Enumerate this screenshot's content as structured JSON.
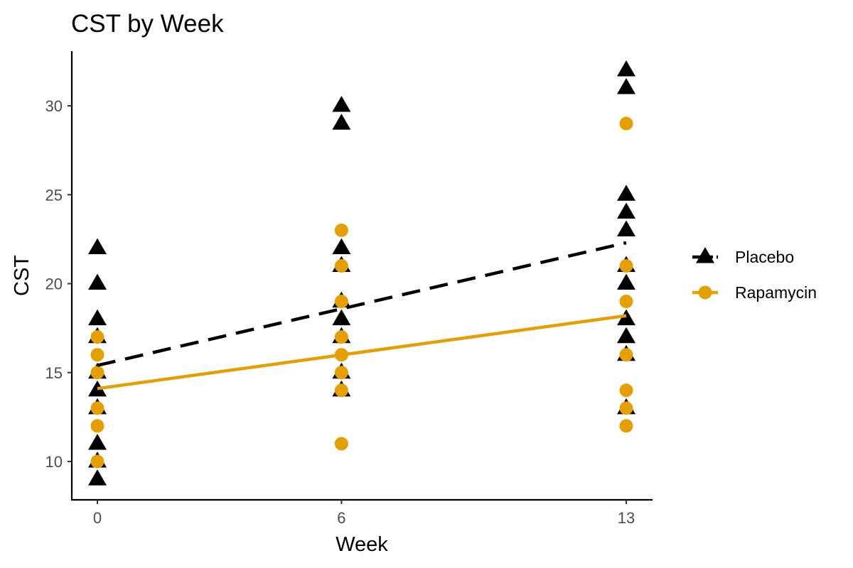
{
  "chart_data": {
    "type": "scatter",
    "title": "CST by Week",
    "xlabel": "Week",
    "ylabel": "CST",
    "x_ticks": [
      0,
      6,
      13
    ],
    "y_ticks": [
      10,
      15,
      20,
      25,
      30
    ],
    "xlim": [
      -0.6,
      13.5
    ],
    "ylim": [
      8.0,
      33.0
    ],
    "legend_position": "right",
    "series": [
      {
        "name": "Placebo",
        "color": "#000000",
        "marker": "triangle",
        "line_style": "dashed",
        "points": [
          {
            "x": 0,
            "y": 9
          },
          {
            "x": 0,
            "y": 10
          },
          {
            "x": 0,
            "y": 11
          },
          {
            "x": 0,
            "y": 13
          },
          {
            "x": 0,
            "y": 14
          },
          {
            "x": 0,
            "y": 15
          },
          {
            "x": 0,
            "y": 17
          },
          {
            "x": 0,
            "y": 18
          },
          {
            "x": 0,
            "y": 20
          },
          {
            "x": 0,
            "y": 22
          },
          {
            "x": 6,
            "y": 14
          },
          {
            "x": 6,
            "y": 15
          },
          {
            "x": 6,
            "y": 17
          },
          {
            "x": 6,
            "y": 18
          },
          {
            "x": 6,
            "y": 19
          },
          {
            "x": 6,
            "y": 21
          },
          {
            "x": 6,
            "y": 22
          },
          {
            "x": 6,
            "y": 29
          },
          {
            "x": 6,
            "y": 30
          },
          {
            "x": 13,
            "y": 13
          },
          {
            "x": 13,
            "y": 16
          },
          {
            "x": 13,
            "y": 17
          },
          {
            "x": 13,
            "y": 18
          },
          {
            "x": 13,
            "y": 20
          },
          {
            "x": 13,
            "y": 21
          },
          {
            "x": 13,
            "y": 23
          },
          {
            "x": 13,
            "y": 24
          },
          {
            "x": 13,
            "y": 25
          },
          {
            "x": 13,
            "y": 31
          },
          {
            "x": 13,
            "y": 32
          }
        ],
        "trend": {
          "x": [
            0,
            13
          ],
          "y": [
            15.4,
            22.3
          ]
        }
      },
      {
        "name": "Rapamycin",
        "color": "#E69F00",
        "marker": "circle",
        "line_style": "solid",
        "points": [
          {
            "x": 0,
            "y": 10
          },
          {
            "x": 0,
            "y": 12
          },
          {
            "x": 0,
            "y": 13
          },
          {
            "x": 0,
            "y": 15
          },
          {
            "x": 0,
            "y": 16
          },
          {
            "x": 0,
            "y": 17
          },
          {
            "x": 6,
            "y": 11
          },
          {
            "x": 6,
            "y": 14
          },
          {
            "x": 6,
            "y": 15
          },
          {
            "x": 6,
            "y": 16
          },
          {
            "x": 6,
            "y": 17
          },
          {
            "x": 6,
            "y": 19
          },
          {
            "x": 6,
            "y": 21
          },
          {
            "x": 6,
            "y": 23
          },
          {
            "x": 13,
            "y": 12
          },
          {
            "x": 13,
            "y": 13
          },
          {
            "x": 13,
            "y": 14
          },
          {
            "x": 13,
            "y": 16
          },
          {
            "x": 13,
            "y": 19
          },
          {
            "x": 13,
            "y": 21
          },
          {
            "x": 13,
            "y": 29
          }
        ],
        "trend": {
          "x": [
            0,
            13
          ],
          "y": [
            14.1,
            18.2
          ]
        }
      }
    ]
  }
}
